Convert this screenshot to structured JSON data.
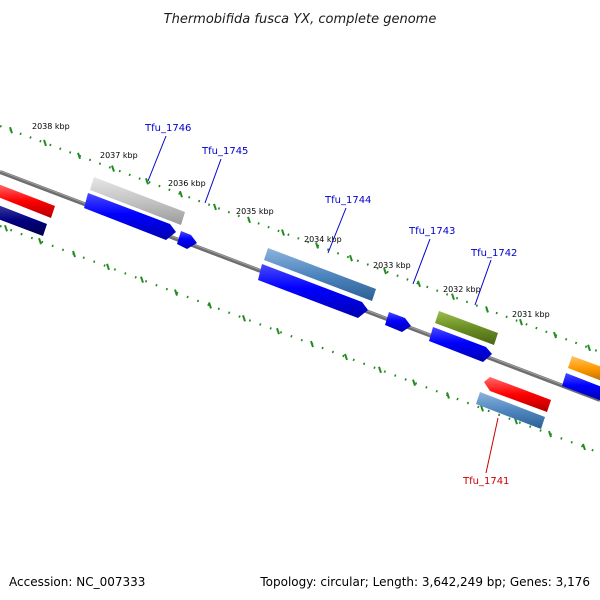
{
  "title": "Thermobifida fusca YX, complete genome",
  "footer": {
    "accession": "Accession: NC_007333",
    "topology": "Topology: circular; Length: 3,642,249 bp; Genes: 3,176"
  },
  "scale_labels": [
    "2038 kbp",
    "2037 kbp",
    "2036 kbp",
    "2035 kbp",
    "2034 kbp",
    "2033 kbp",
    "2032 kbp",
    "2031 kbp"
  ],
  "genes": [
    {
      "name": "Tfu_1746",
      "strand": "+",
      "feature_color": "#c0c0c0",
      "label_color": "#0000cc"
    },
    {
      "name": "Tfu_1745",
      "strand": "+",
      "feature_color": "#0000ff",
      "label_color": "#0000cc"
    },
    {
      "name": "Tfu_1744",
      "strand": "+",
      "feature_color": "#4f86c0",
      "label_color": "#0000cc"
    },
    {
      "name": "Tfu_1743",
      "strand": "+",
      "feature_color": "#0000ff",
      "label_color": "#0000cc"
    },
    {
      "name": "Tfu_1742",
      "strand": "+",
      "feature_color": "#6b8e23",
      "label_color": "#0000cc"
    },
    {
      "name": "Tfu_1741",
      "strand": "-",
      "feature_color": "#ff0000",
      "label_color": "#cc0000"
    }
  ],
  "colors": {
    "backbone": "#7a7a7a",
    "ticks": "#228b22",
    "cds": "#0000ff",
    "gene_grey": "#c0c0c0",
    "gene_steelblue": "#4f86c0",
    "gene_olive": "#6b8e23",
    "gene_red": "#ff0000",
    "gene_navy": "#000080",
    "gene_orange": "#ff9900"
  }
}
